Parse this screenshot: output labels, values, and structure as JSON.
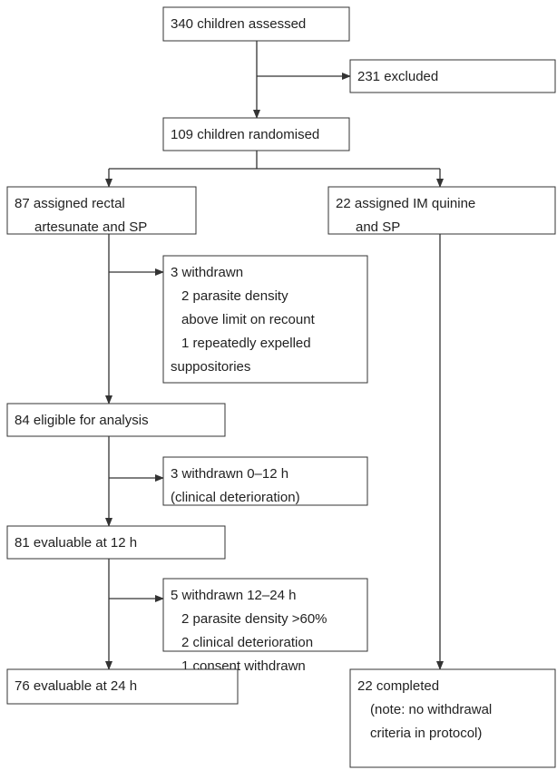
{
  "nodes": [
    {
      "lines": [
        "340 children assessed"
      ]
    },
    {
      "lines": [
        "231 excluded"
      ]
    },
    {
      "lines": [
        "109 children randomised"
      ]
    },
    {
      "lines": [
        "87 assigned rectal",
        "artesunate and SP"
      ]
    },
    {
      "lines": [
        "22 assigned IM quinine",
        "and SP"
      ]
    },
    {
      "lines": [
        "3 withdrawn",
        "2 parasite density",
        "above limit on recount",
        "1 repeatedly expelled",
        "suppositories"
      ]
    },
    {
      "lines": [
        "84 eligible for analysis"
      ]
    },
    {
      "lines": [
        "3 withdrawn 0–12 h",
        "(clinical deterioration)"
      ]
    },
    {
      "lines": [
        "81 evaluable at 12 h"
      ]
    },
    {
      "lines": [
        "5 withdrawn 12–24 h",
        "2 parasite density >60%",
        "2 clinical deterioration",
        "1 consent withdrawn"
      ]
    },
    {
      "lines": [
        "76 evaluable at 24 h"
      ]
    },
    {
      "lines": [
        "22 completed",
        "(note: no withdrawal",
        "criteria in protocol)"
      ]
    }
  ]
}
